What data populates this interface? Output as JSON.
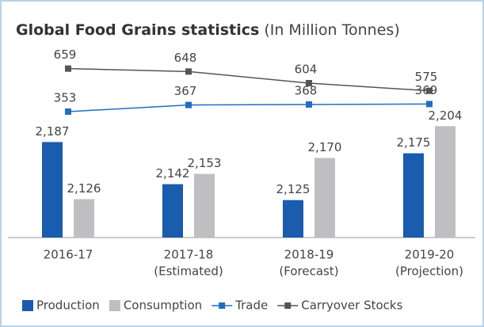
{
  "chart_data": {
    "type": "bar",
    "title": "Global Food Grains statistics",
    "subtitle": "(In Million Tonnes)",
    "categories": [
      [
        "2016-17"
      ],
      [
        "2017-18",
        "(Estimated)"
      ],
      [
        "2018-19",
        "(Forecast)"
      ],
      [
        "2019-20",
        "(Projection)"
      ]
    ],
    "ylim": [
      2085,
      2288
    ],
    "series": [
      {
        "name": "Production",
        "type": "bar",
        "color": "#1a5cad",
        "values": [
          2187,
          2142,
          2125,
          2175
        ],
        "value_labels": [
          "2,187",
          "2,142",
          "2,125",
          "2,175"
        ]
      },
      {
        "name": "Consumption",
        "type": "bar",
        "color": "#bfbfc1",
        "values": [
          2126,
          2153,
          2170,
          2204
        ],
        "value_labels": [
          "2,126",
          "2,153",
          "2,170",
          "2,204"
        ]
      },
      {
        "name": "Trade",
        "type": "line",
        "color": "#1f6fc0",
        "ylim": [
          88,
          488
        ],
        "values": [
          353,
          367,
          368,
          369
        ]
      },
      {
        "name": "Carryover Stocks",
        "type": "line",
        "color": "#555555",
        "ylim": [
          19,
          739
        ],
        "values": [
          659,
          648,
          604,
          575
        ]
      }
    ]
  }
}
